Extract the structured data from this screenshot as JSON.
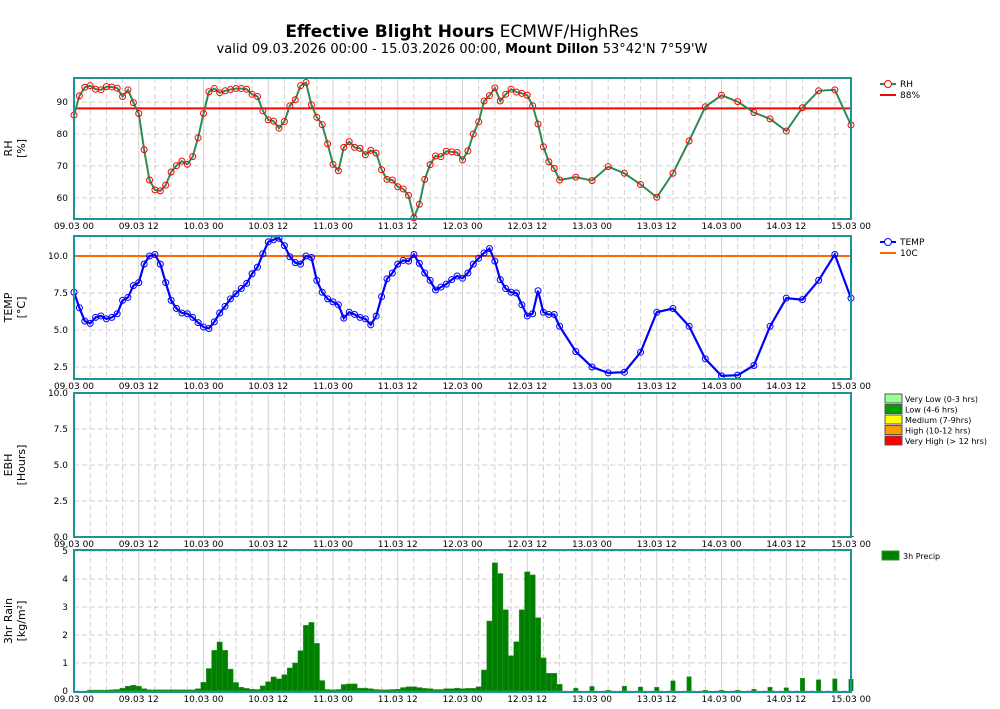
{
  "title": {
    "bold": "Effective Blight Hours",
    "rest": " ECMWF/HighRes"
  },
  "subtitle": {
    "prefix": "valid 09.03.2026 00:00 - 15.03.2026 00:00, ",
    "location": "Mount Dillon",
    "coords": " 53°42'N 7°59'W"
  },
  "x_tick_labels": [
    "09.03 00",
    "09.03 12",
    "10.03 00",
    "10.03 12",
    "11.03 00",
    "11.03 12",
    "12.03 00",
    "12.03 12",
    "13.03 00",
    "13.03 12",
    "14.03 00",
    "14.03 12",
    "15.03 00"
  ],
  "times": [
    "09.03 00",
    "09.03 01",
    "09.03 02",
    "09.03 03",
    "09.03 04",
    "09.03 05",
    "09.03 06",
    "09.03 07",
    "09.03 08",
    "09.03 09",
    "09.03 10",
    "09.03 11",
    "09.03 12",
    "09.03 13",
    "09.03 14",
    "09.03 15",
    "09.03 16",
    "09.03 17",
    "09.03 18",
    "09.03 19",
    "09.03 20",
    "09.03 21",
    "09.03 22",
    "09.03 23",
    "10.03 00",
    "10.03 01",
    "10.03 02",
    "10.03 03",
    "10.03 04",
    "10.03 05",
    "10.03 06",
    "10.03 07",
    "10.03 08",
    "10.03 09",
    "10.03 10",
    "10.03 11",
    "10.03 12",
    "10.03 13",
    "10.03 14",
    "10.03 15",
    "10.03 16",
    "10.03 17",
    "10.03 18",
    "10.03 19",
    "10.03 20",
    "10.03 21",
    "10.03 22",
    "10.03 23",
    "11.03 00",
    "11.03 01",
    "11.03 02",
    "11.03 03",
    "11.03 04",
    "11.03 05",
    "11.03 06",
    "11.03 07",
    "11.03 08",
    "11.03 09",
    "11.03 10",
    "11.03 11",
    "11.03 12",
    "11.03 13",
    "11.03 14",
    "11.03 15",
    "11.03 16",
    "11.03 17",
    "11.03 18",
    "11.03 19",
    "11.03 20",
    "11.03 21",
    "11.03 22",
    "11.03 23",
    "12.03 00",
    "12.03 01",
    "12.03 02",
    "12.03 03",
    "12.03 04",
    "12.03 05",
    "12.03 06",
    "12.03 07",
    "12.03 08",
    "12.03 09",
    "12.03 10",
    "12.03 11",
    "12.03 12",
    "12.03 13",
    "12.03 14",
    "12.03 15",
    "12.03 16",
    "12.03 17",
    "12.03 18",
    "12.03 21",
    "13.03 00",
    "13.03 03",
    "13.03 06",
    "13.03 09",
    "13.03 12",
    "13.03 15",
    "13.03 18",
    "13.03 21",
    "14.03 00",
    "14.03 03",
    "14.03 06",
    "14.03 09",
    "14.03 12",
    "14.03 15",
    "14.03 18",
    "14.03 21",
    "15.03 00"
  ],
  "chart_data": [
    {
      "type": "line",
      "ylabel": "RH",
      "yunit": "[%]",
      "ylim": [
        53.4,
        97.5
      ],
      "yticks": [
        "60",
        "70",
        "80",
        "90"
      ],
      "grid": true,
      "legend_position": "right",
      "series": [
        {
          "name": "RH",
          "color": "#2e8b57",
          "marker_color": "#ff0000",
          "values": [
            85.9,
            91.9,
            94.6,
            95.1,
            94.0,
            93.8,
            94.8,
            94.7,
            94.3,
            91.7,
            93.8,
            89.8,
            86.4,
            75.1,
            65.6,
            62.5,
            62.2,
            64.0,
            68.1,
            70.1,
            71.5,
            70.5,
            72.9,
            78.8,
            86.4,
            93.2,
            94.2,
            92.9,
            93.5,
            93.9,
            94.2,
            94.2,
            94.0,
            92.4,
            91.7,
            87.2,
            84.4,
            84.0,
            81.8,
            83.9,
            88.8,
            90.7,
            95.1,
            96.1,
            89.1,
            85.2,
            82.9,
            76.9,
            70.5,
            68.5,
            75.8,
            77.6,
            75.8,
            75.5,
            73.5,
            74.9,
            74.0,
            68.8,
            65.8,
            65.6,
            63.5,
            62.8,
            60.8,
            53.8,
            58.0,
            65.8,
            70.4,
            73.1,
            72.9,
            74.6,
            74.4,
            74.2,
            71.9,
            74.7,
            80.0,
            83.8,
            90.3,
            92.0,
            94.4,
            90.3,
            92.4,
            94.0,
            93.1,
            92.7,
            92.1,
            88.8,
            83.1,
            76.0,
            71.3,
            69.2,
            65.6,
            66.5,
            65.4,
            69.8,
            67.7,
            64.2,
            60.2,
            67.7,
            77.8,
            88.5,
            92.1,
            90.1,
            86.7,
            84.7,
            80.9,
            88.2,
            93.5,
            93.8,
            82.8
          ]
        }
      ],
      "threshold": {
        "name": "88%",
        "value": 88,
        "color": "#ff0000"
      }
    },
    {
      "type": "line",
      "ylabel": "TEMP",
      "yunit": "[°C]",
      "ylim": [
        1.69,
        11.35
      ],
      "yticks": [
        "2.5",
        "5.0",
        "7.5",
        "10.0"
      ],
      "grid": true,
      "legend_position": "right",
      "series": [
        {
          "name": "TEMP",
          "color": "#0000ff",
          "values": [
            7.55,
            6.5,
            5.6,
            5.45,
            5.85,
            5.95,
            5.75,
            5.85,
            6.1,
            7.0,
            7.2,
            8.0,
            8.2,
            9.45,
            10.0,
            10.1,
            9.45,
            8.2,
            7.0,
            6.45,
            6.15,
            6.1,
            5.85,
            5.5,
            5.2,
            5.1,
            5.55,
            6.15,
            6.6,
            7.1,
            7.45,
            7.8,
            8.15,
            8.8,
            9.25,
            10.15,
            10.95,
            11.1,
            11.2,
            10.7,
            9.95,
            9.55,
            9.45,
            10.0,
            9.9,
            8.35,
            7.55,
            7.1,
            6.9,
            6.7,
            5.8,
            6.2,
            6.05,
            5.85,
            5.75,
            5.35,
            5.95,
            7.25,
            8.45,
            8.85,
            9.45,
            9.7,
            9.65,
            10.1,
            9.5,
            8.85,
            8.35,
            7.7,
            7.9,
            8.1,
            8.4,
            8.65,
            8.5,
            8.85,
            9.45,
            9.85,
            10.2,
            10.5,
            9.65,
            8.4,
            7.8,
            7.55,
            7.5,
            6.7,
            5.95,
            6.1,
            7.65,
            6.2,
            6.05,
            6.05,
            5.25,
            3.55,
            2.5,
            2.1,
            2.15,
            3.5,
            6.2,
            6.45,
            5.25,
            3.05,
            1.9,
            1.95,
            2.6,
            5.25,
            7.15,
            7.05,
            8.35,
            10.1,
            7.15
          ]
        }
      ],
      "threshold": {
        "name": "10C",
        "value": 10,
        "color": "#ff6600"
      }
    },
    {
      "type": "bar",
      "ylabel": "EBH",
      "yunit": "[Hours]",
      "ylim": [
        0,
        10
      ],
      "yticks": [
        "0.0",
        "2.5",
        "5.0",
        "7.5",
        "10.0"
      ],
      "grid": true,
      "legend_position": "right",
      "values": [
        0,
        0,
        0,
        0,
        0,
        0,
        0,
        0,
        0,
        0,
        0,
        0,
        0,
        0,
        0,
        0,
        0,
        0,
        0,
        0,
        0,
        0,
        0,
        0,
        0,
        0,
        0,
        0,
        0,
        0,
        0,
        0,
        0,
        0,
        0,
        0,
        0,
        0,
        0,
        0,
        0,
        0,
        0,
        0,
        0,
        0,
        0,
        0,
        0,
        0,
        0,
        0,
        0,
        0,
        0,
        0,
        0,
        0,
        0,
        0,
        0,
        0,
        0,
        0,
        0,
        0,
        0,
        0,
        0,
        0,
        0,
        0,
        0,
        0,
        0,
        0,
        0,
        0,
        0,
        0,
        0,
        0,
        0,
        0,
        0,
        0,
        0,
        0,
        0,
        0,
        0,
        0,
        0,
        0,
        0,
        0,
        0,
        0,
        0,
        0,
        0,
        0,
        0,
        0,
        0,
        0,
        0,
        0,
        0
      ],
      "legend": [
        {
          "label": "Very Low (0-3 hrs)",
          "color": "#99ff99"
        },
        {
          "label": "Low (4-6 hrs)",
          "color": "#00a000"
        },
        {
          "label": "Medium (7-9hrs)",
          "color": "#ffff00"
        },
        {
          "label": "High (10-12 hrs)",
          "color": "#ff9900"
        },
        {
          "label": "Very High (> 12 hrs)",
          "color": "#ff0000"
        }
      ]
    },
    {
      "type": "bar",
      "ylabel": "3hr Rain",
      "yunit": "[kg/m²]",
      "ylim": [
        0,
        5
      ],
      "yticks": [
        "0",
        "1",
        "2",
        "3",
        "4",
        "5"
      ],
      "grid": true,
      "legend_position": "right",
      "series": [
        {
          "name": "3h Precip",
          "color": "#008000",
          "values": [
            null,
            null,
            null,
            0.03,
            0.03,
            0.03,
            0.03,
            0.04,
            0.05,
            0.1,
            0.17,
            0.2,
            0.17,
            0.08,
            0.04,
            0.04,
            0.04,
            0.04,
            0.04,
            0.04,
            0.04,
            0.04,
            0.04,
            0.08,
            0.31,
            0.8,
            1.45,
            1.75,
            1.45,
            0.78,
            0.3,
            0.13,
            0.09,
            0.06,
            0.05,
            0.18,
            0.33,
            0.5,
            0.43,
            0.58,
            0.82,
            1.0,
            1.44,
            2.35,
            2.45,
            1.7,
            0.37,
            0.05,
            0.04,
            0.05,
            0.23,
            0.25,
            0.25,
            0.1,
            0.1,
            0.08,
            0.05,
            0.04,
            0.04,
            0.05,
            0.06,
            0.12,
            0.15,
            0.15,
            0.12,
            0.09,
            0.08,
            0.05,
            0.05,
            0.08,
            0.08,
            0.1,
            0.08,
            0.09,
            0.09,
            0.15,
            0.75,
            2.5,
            4.58,
            4.2,
            2.9,
            1.26,
            1.76,
            2.9,
            4.26,
            4.15,
            2.62,
            1.18,
            0.63,
            0.63,
            0.24,
            0.1,
            0.16,
            0.02,
            0.17,
            0.14,
            0.13,
            0.36,
            0.51,
            0.02,
            0.02,
            0.02,
            0.06,
            0.13,
            0.11,
            0.45,
            0.4,
            0.43,
            0.42
          ]
        }
      ]
    }
  ],
  "colors": {
    "frame": "#1a9494",
    "grid": "#d0d0d0"
  }
}
